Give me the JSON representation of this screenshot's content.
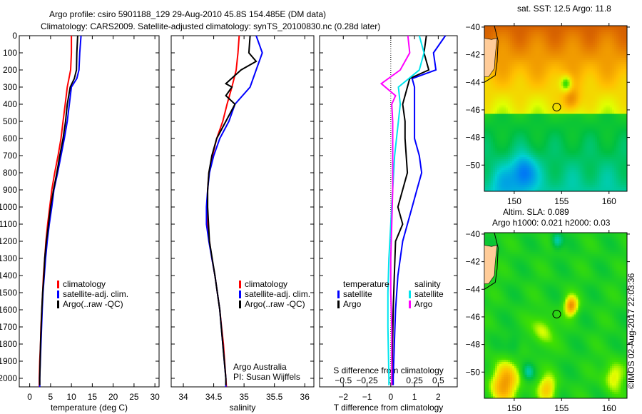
{
  "title_line1": "Argo profile: csiro 5901188_129 29-Aug-2010 45.8S 154.485E (DM data)",
  "title_line2": "Climatology: CARS2009. Satellite-adjusted climatology: synTS_20100830.nc (0.28d later)",
  "credit": "©IMOS 02-Aug-2017 22:03:36",
  "colors": {
    "climatology": "#ff0000",
    "satellite": "#0000ff",
    "argo": "#000000",
    "sal_satellite": "#00e5ee",
    "sal_argo": "#ff00ff"
  },
  "chart_data": [
    {
      "type": "line",
      "id": "temperature",
      "xlabel": "temperature (deg C)",
      "ylabel": "depth",
      "xlim": [
        -2.5,
        31
      ],
      "ylim": [
        2050,
        0
      ],
      "xticks": [
        0,
        5,
        10,
        15,
        20,
        25,
        30
      ],
      "yticks": [
        0,
        100,
        200,
        300,
        400,
        500,
        600,
        700,
        800,
        900,
        1000,
        1100,
        1200,
        1300,
        1400,
        1500,
        1600,
        1700,
        1800,
        1900,
        2000
      ],
      "legend": {
        "position": "center-left",
        "entries": [
          "climatology",
          "satellite-adj. clim.",
          "Argo(..raw -QC)"
        ]
      },
      "series": [
        {
          "name": "climatology",
          "color": "#ff0000",
          "depth": [
            0,
            100,
            200,
            300,
            400,
            500,
            600,
            700,
            800,
            900,
            1000,
            1100,
            1200,
            1300,
            1400,
            1500,
            1600,
            1700,
            1800,
            1900,
            2000,
            2050
          ],
          "values": [
            10,
            10,
            9.8,
            9,
            8.5,
            8,
            7.5,
            6.8,
            6,
            5.3,
            4.8,
            4.3,
            3.9,
            3.6,
            3.3,
            3.1,
            2.9,
            2.7,
            2.6,
            2.4,
            2.3,
            2.3
          ]
        },
        {
          "name": "satellite-adj. clim.",
          "color": "#0000ff",
          "depth": [
            0,
            100,
            200,
            250,
            300,
            400,
            500,
            600,
            700,
            800,
            900,
            1000,
            1100,
            1200,
            1300,
            1400,
            1500,
            1600,
            1800,
            2000,
            2050
          ],
          "values": [
            12.3,
            12,
            11.8,
            11.3,
            10,
            9.5,
            9,
            8.3,
            7.5,
            6.7,
            5.8,
            5.3,
            4.7,
            4.2,
            3.8,
            3.5,
            3.2,
            3,
            2.7,
            2.4,
            2.4
          ]
        },
        {
          "name": "Argo(..raw -QC)",
          "color": "#000000",
          "depth": [
            0,
            100,
            200,
            250,
            300,
            400,
            500,
            600,
            700,
            800,
            900,
            1000,
            1100,
            1200,
            1300,
            1400,
            1500,
            1600,
            1800,
            2000,
            2040
          ],
          "values": [
            11.5,
            11.3,
            11.2,
            10.7,
            9.7,
            9,
            8.6,
            8,
            7.2,
            6.5,
            5.7,
            5,
            4.5,
            4,
            3.6,
            3.4,
            3.1,
            2.9,
            2.6,
            2.4,
            2.4
          ]
        }
      ]
    },
    {
      "type": "line",
      "id": "salinity",
      "xlabel": "salinity",
      "ylabel": "depth",
      "xlim": [
        33.8,
        36.15
      ],
      "ylim": [
        2050,
        0
      ],
      "xticks": [
        34,
        34.5,
        35,
        35.5,
        36
      ],
      "legend": {
        "position": "center-right",
        "entries": [
          "climatology",
          "satellite-adj. clim.",
          "Argo(..raw -QC)"
        ]
      },
      "annotation": [
        "Argo Australia",
        "PI: Susan Wijffels"
      ],
      "series": [
        {
          "name": "climatology",
          "color": "#ff0000",
          "depth": [
            0,
            100,
            200,
            300,
            400,
            500,
            600,
            700,
            800,
            900,
            1000,
            1100,
            1200,
            1300,
            1400,
            1500,
            1600,
            1700,
            1800,
            1900,
            2000,
            2050
          ],
          "values": [
            34.92,
            34.9,
            34.87,
            34.8,
            34.72,
            34.65,
            34.55,
            34.48,
            34.42,
            34.4,
            34.39,
            34.4,
            34.43,
            34.47,
            34.52,
            34.56,
            34.6,
            34.63,
            34.66,
            34.68,
            34.7,
            34.71
          ]
        },
        {
          "name": "satellite-adj. clim.",
          "color": "#0000ff",
          "depth": [
            0,
            50,
            100,
            200,
            300,
            400,
            500,
            600,
            700,
            800,
            900,
            1000,
            1100,
            1200,
            1300,
            1400,
            1500,
            1600,
            1800,
            2000,
            2050
          ],
          "values": [
            35.2,
            35.25,
            35.3,
            35.2,
            35.1,
            34.85,
            34.75,
            34.6,
            34.5,
            34.43,
            34.4,
            34.38,
            34.38,
            34.42,
            34.47,
            34.52,
            34.56,
            34.6,
            34.65,
            34.7,
            34.7
          ]
        },
        {
          "name": "Argo(..raw -QC)",
          "color": "#000000",
          "depth": [
            0,
            100,
            150,
            200,
            280,
            300,
            350,
            400,
            500,
            600,
            700,
            800,
            900,
            1000,
            1200,
            1400,
            1600,
            1800,
            2000,
            2040
          ],
          "values": [
            35.1,
            35.08,
            35.2,
            34.95,
            34.7,
            34.8,
            34.7,
            34.85,
            34.7,
            34.55,
            34.47,
            34.42,
            34.4,
            34.4,
            34.43,
            34.52,
            34.6,
            34.65,
            34.7,
            34.7
          ]
        }
      ]
    },
    {
      "type": "line",
      "id": "difference",
      "xlabel": "T difference from climatology",
      "x2label": "S difference from climatology",
      "xlim": [
        -3,
        2.8
      ],
      "x2lim": [
        -0.75,
        0.7
      ],
      "ylim": [
        2050,
        0
      ],
      "xticks": [
        -2,
        -1,
        0,
        1,
        2
      ],
      "x2ticks": [
        -0.5,
        -0.25,
        0,
        0.25,
        0.5
      ],
      "legend": {
        "position": "bottom-center",
        "temperature_heading": "temperature",
        "salinity_heading": "salinity",
        "entries": [
          "satellite",
          "Argo",
          "satellite",
          "Argo"
        ]
      },
      "series": [
        {
          "name": "T satellite",
          "axis": "T",
          "color": "#0000ff",
          "depth": [
            0,
            100,
            200,
            250,
            300,
            400,
            500,
            600,
            700,
            800,
            900,
            1000,
            1200,
            1400,
            1600,
            1800,
            2000,
            2040
          ],
          "values": [
            2.3,
            1.8,
            1.9,
            0.9,
            1.0,
            1.0,
            1.0,
            1.0,
            1.2,
            1.3,
            1.1,
            0.9,
            0.5,
            0.3,
            0.2,
            0.15,
            0.1,
            0.1
          ]
        },
        {
          "name": "T Argo",
          "axis": "T",
          "color": "#000000",
          "depth": [
            0,
            100,
            200,
            250,
            300,
            400,
            500,
            600,
            800,
            1000,
            1100,
            1200,
            1400,
            1600,
            2000,
            2040
          ],
          "values": [
            1.5,
            1.4,
            1.6,
            0.8,
            0.7,
            0.5,
            0.6,
            0.6,
            0.7,
            0.3,
            0.5,
            0.2,
            0.15,
            0.1,
            0.05,
            0.05
          ]
        },
        {
          "name": "S satellite",
          "axis": "S",
          "color": "#00e5ee",
          "depth": [
            0,
            100,
            200,
            300,
            400,
            500,
            700,
            900,
            1100,
            1300,
            1500,
            1700,
            2000,
            2040
          ],
          "values": [
            0.3,
            0.35,
            0.3,
            0.08,
            0.1,
            0.08,
            0.04,
            0.02,
            0.0,
            -0.02,
            -0.03,
            -0.03,
            -0.02,
            -0.02
          ]
        },
        {
          "name": "S Argo",
          "axis": "S",
          "color": "#ff00ff",
          "depth": [
            0,
            100,
            200,
            280,
            350,
            400,
            500,
            700,
            900,
            1100,
            1300,
            1500,
            1700,
            2000,
            2040
          ],
          "values": [
            0.18,
            0.2,
            0.1,
            -0.1,
            0.05,
            0.01,
            0.02,
            0.02,
            0.02,
            0.01,
            0.0,
            0.0,
            0.01,
            0.01,
            0.01
          ]
        }
      ]
    },
    {
      "type": "heatmap",
      "id": "sst-map",
      "title": "sat. SST: 12.5 Argo: 11.8",
      "xlim": [
        146.85,
        161.9
      ],
      "ylim": [
        -51.9,
        -39.9
      ],
      "xticks": [
        150,
        155,
        160
      ],
      "yticks": [
        -40,
        -42,
        -44,
        -46,
        -48,
        -50
      ],
      "argo_position": [
        154.485,
        -45.8
      ]
    },
    {
      "type": "heatmap",
      "id": "sla-map",
      "title_line1": "Altim. SLA: 0.089",
      "title_line2": "Argo h1000: 0.021 h2000: 0.03",
      "xlim": [
        146.85,
        161.9
      ],
      "ylim": [
        -51.9,
        -39.9
      ],
      "xticks": [
        150,
        155,
        160
      ],
      "yticks": [
        -40,
        -42,
        -44,
        -46,
        -48,
        -50
      ],
      "argo_position": [
        154.485,
        -45.8
      ]
    }
  ]
}
